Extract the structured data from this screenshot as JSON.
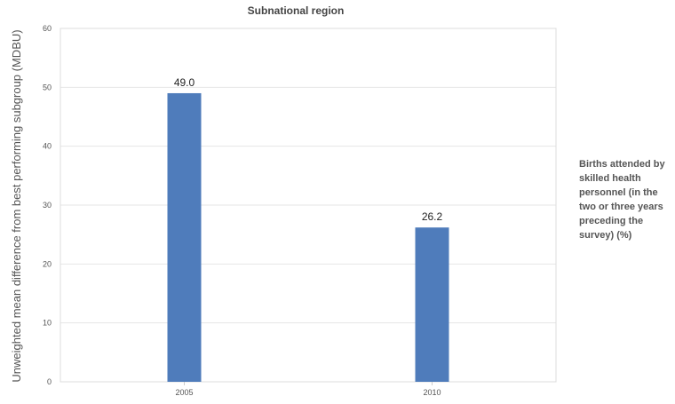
{
  "chart_data": {
    "type": "bar",
    "title": "Subnational region",
    "ylabel": "Unweighted mean difference from best performing subgroup (MDBU)",
    "xlabel": "",
    "categories": [
      "2005",
      "2010"
    ],
    "series": [
      {
        "name": "Births attended by skilled health personnel (in the two or three years preceding the survey) (%)",
        "values": [
          49.0,
          26.2
        ],
        "labels": [
          "49.0",
          "26.2"
        ],
        "color": "#4f7cbb"
      }
    ],
    "ylim": [
      0,
      60
    ],
    "yticks": [
      0,
      10,
      20,
      30,
      40,
      50,
      60
    ],
    "grid": true,
    "legend_position": "right"
  }
}
